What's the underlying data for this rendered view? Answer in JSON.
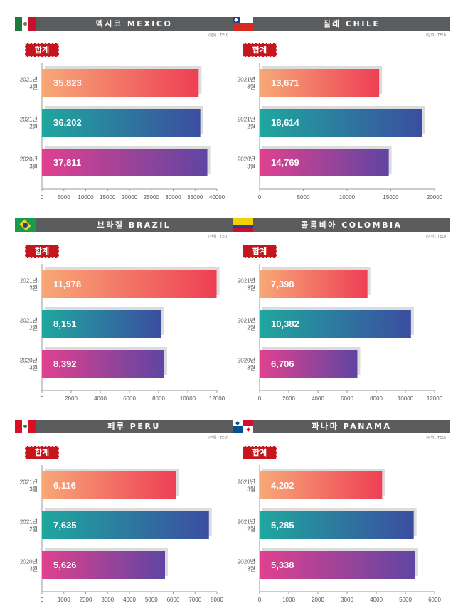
{
  "colors": {
    "header_bg": "#5b5c5e",
    "total_bg": "#c4161c",
    "bar_gradients": [
      [
        "#f7a877",
        "#ee3f55"
      ],
      [
        "#1fa79e",
        "#3b4da0"
      ],
      [
        "#e0418f",
        "#5f45a2"
      ]
    ]
  },
  "panels": [
    {
      "title": "멕시코 MEXICO",
      "flag": "mexico-flag",
      "unit": "(단위 : TEU)",
      "total_label": "합계",
      "chart_data": {
        "type": "bar",
        "orientation": "horizontal",
        "categories": [
          [
            "2021년",
            "3월"
          ],
          [
            "2021년",
            "2월"
          ],
          [
            "2020년",
            "3월"
          ]
        ],
        "values": [
          35823,
          36202,
          37811
        ],
        "value_labels": [
          "35,823",
          "36,202",
          "37,811"
        ],
        "xticks": [
          0,
          5000,
          10000,
          15000,
          20000,
          25000,
          30000,
          35000,
          40000
        ],
        "xlim": [
          0,
          40000
        ]
      }
    },
    {
      "title": "칠레 CHILE",
      "flag": "chile-flag",
      "unit": "(단위 : TEU)",
      "total_label": "합계",
      "chart_data": {
        "type": "bar",
        "orientation": "horizontal",
        "categories": [
          [
            "2021년",
            "3월"
          ],
          [
            "2021년",
            "2월"
          ],
          [
            "2020년",
            "3월"
          ]
        ],
        "values": [
          13671,
          18614,
          14769
        ],
        "value_labels": [
          "13,671",
          "18,614",
          "14,769"
        ],
        "xticks": [
          0,
          5000,
          10000,
          15000,
          20000
        ],
        "xlim": [
          0,
          20000
        ]
      }
    },
    {
      "title": "브라질 BRAZIL",
      "flag": "brazil-flag",
      "unit": "(단위 : TEU)",
      "total_label": "합계",
      "chart_data": {
        "type": "bar",
        "orientation": "horizontal",
        "categories": [
          [
            "2021년",
            "3월"
          ],
          [
            "2021년",
            "2월"
          ],
          [
            "2020년",
            "3월"
          ]
        ],
        "values": [
          11978,
          8151,
          8392
        ],
        "value_labels": [
          "11,978",
          "8,151",
          "8,392"
        ],
        "xticks": [
          0,
          2000,
          4000,
          6000,
          8000,
          10000,
          12000
        ],
        "xlim": [
          0,
          12000
        ]
      }
    },
    {
      "title": "콜롬비아 COLOMBIA",
      "flag": "colombia-flag",
      "unit": "(단위 : TEU)",
      "total_label": "합계",
      "chart_data": {
        "type": "bar",
        "orientation": "horizontal",
        "categories": [
          [
            "2021년",
            "3월"
          ],
          [
            "2021년",
            "2월"
          ],
          [
            "2020년",
            "3월"
          ]
        ],
        "values": [
          7398,
          10382,
          6706
        ],
        "value_labels": [
          "7,398",
          "10,382",
          "6,706"
        ],
        "xticks": [
          0,
          2000,
          4000,
          6000,
          8000,
          10000,
          12000
        ],
        "xlim": [
          0,
          12000
        ]
      }
    },
    {
      "title": "페루 PERU",
      "flag": "peru-flag",
      "unit": "(단위 : TEU)",
      "total_label": "합계",
      "chart_data": {
        "type": "bar",
        "orientation": "horizontal",
        "categories": [
          [
            "2021년",
            "3월"
          ],
          [
            "2021년",
            "2월"
          ],
          [
            "2020년",
            "3월"
          ]
        ],
        "values": [
          6116,
          7635,
          5626
        ],
        "value_labels": [
          "6,116",
          "7,635",
          "5,626"
        ],
        "xticks": [
          0,
          1000,
          2000,
          3000,
          4000,
          5000,
          6000,
          7000,
          8000
        ],
        "xlim": [
          0,
          8000
        ]
      }
    },
    {
      "title": "파나마 PANAMA",
      "flag": "panama-flag",
      "unit": "(단위 : TEU)",
      "total_label": "합계",
      "chart_data": {
        "type": "bar",
        "orientation": "horizontal",
        "categories": [
          [
            "2021년",
            "3월"
          ],
          [
            "2021년",
            "2월"
          ],
          [
            "2020년",
            "3월"
          ]
        ],
        "values": [
          4202,
          5285,
          5338
        ],
        "value_labels": [
          "4,202",
          "5,285",
          "5,338"
        ],
        "xticks": [
          0,
          1000,
          2000,
          3000,
          4000,
          5000,
          6000
        ],
        "xlim": [
          0,
          6000
        ]
      }
    }
  ]
}
